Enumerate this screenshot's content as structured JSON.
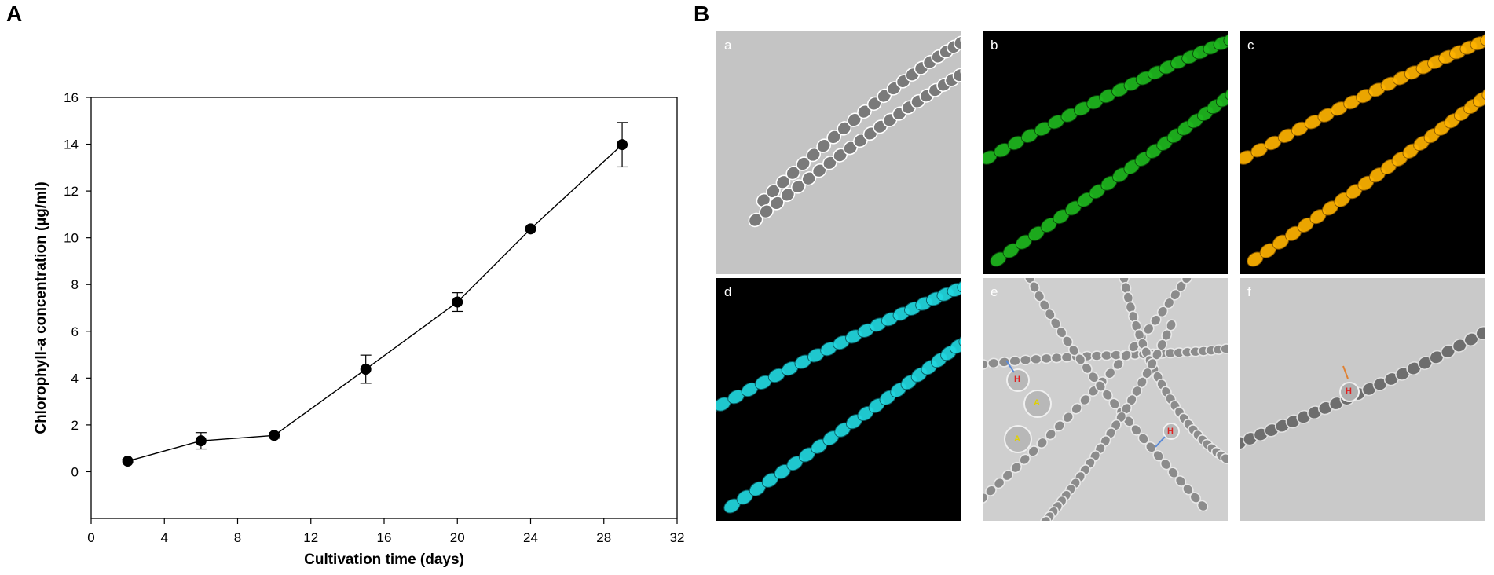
{
  "panel_a_label": "A",
  "panel_b_label": "B",
  "chart_data": {
    "type": "line",
    "xlabel": "Cultivation time (days)",
    "ylabel": "Chlorophyll-a concentration (µg/ml)",
    "xlim": [
      0,
      32
    ],
    "ylim": [
      -2,
      16
    ],
    "x_ticks": [
      "0",
      "4",
      "8",
      "12",
      "16",
      "20",
      "24",
      "28",
      "32"
    ],
    "y_ticks": [
      "0",
      "2",
      "4",
      "6",
      "8",
      "10",
      "12",
      "14",
      "16"
    ],
    "grid": false,
    "x": [
      2,
      6,
      10,
      15,
      20,
      24,
      29
    ],
    "y": [
      0.45,
      1.32,
      1.55,
      4.38,
      7.25,
      10.38,
      13.98
    ],
    "error": [
      0.08,
      0.35,
      0.12,
      0.6,
      0.4,
      0.07,
      0.95
    ]
  },
  "micrographs": [
    {
      "label": "a",
      "background": "#c4c4c4",
      "cell_color": "#7a7a7a",
      "rim_color": "#ffffff",
      "label_color": "#ffffff"
    },
    {
      "label": "b",
      "background": "#000000",
      "cell_color": "#1fb81f",
      "rim_color": "#0a4a0a",
      "label_color": "#ffffff"
    },
    {
      "label": "c",
      "background": "#000000",
      "cell_color": "#ffb400",
      "rim_color": "#8a5a00",
      "label_color": "#ffffff"
    },
    {
      "label": "d",
      "background": "#000000",
      "cell_color": "#22d8e0",
      "rim_color": "#0a5a60",
      "label_color": "#ffffff"
    },
    {
      "label": "e",
      "background": "#cfcfcf",
      "cell_color": "#8c8c8c",
      "rim_color": "#e8e8e8",
      "label_color": "#ffffff",
      "cell_labels": [
        {
          "text": "H",
          "color": "#e02020"
        },
        {
          "text": "A",
          "color": "#e0d000"
        },
        {
          "text": "A",
          "color": "#e0d000"
        },
        {
          "text": "H",
          "color": "#e02020"
        }
      ]
    },
    {
      "label": "f",
      "background": "#c9c9c9",
      "cell_color": "#6e6e6e",
      "rim_color": "#e0e0e0",
      "label_color": "#ffffff",
      "cell_labels": [
        {
          "text": "H",
          "color": "#e02020"
        }
      ]
    }
  ]
}
